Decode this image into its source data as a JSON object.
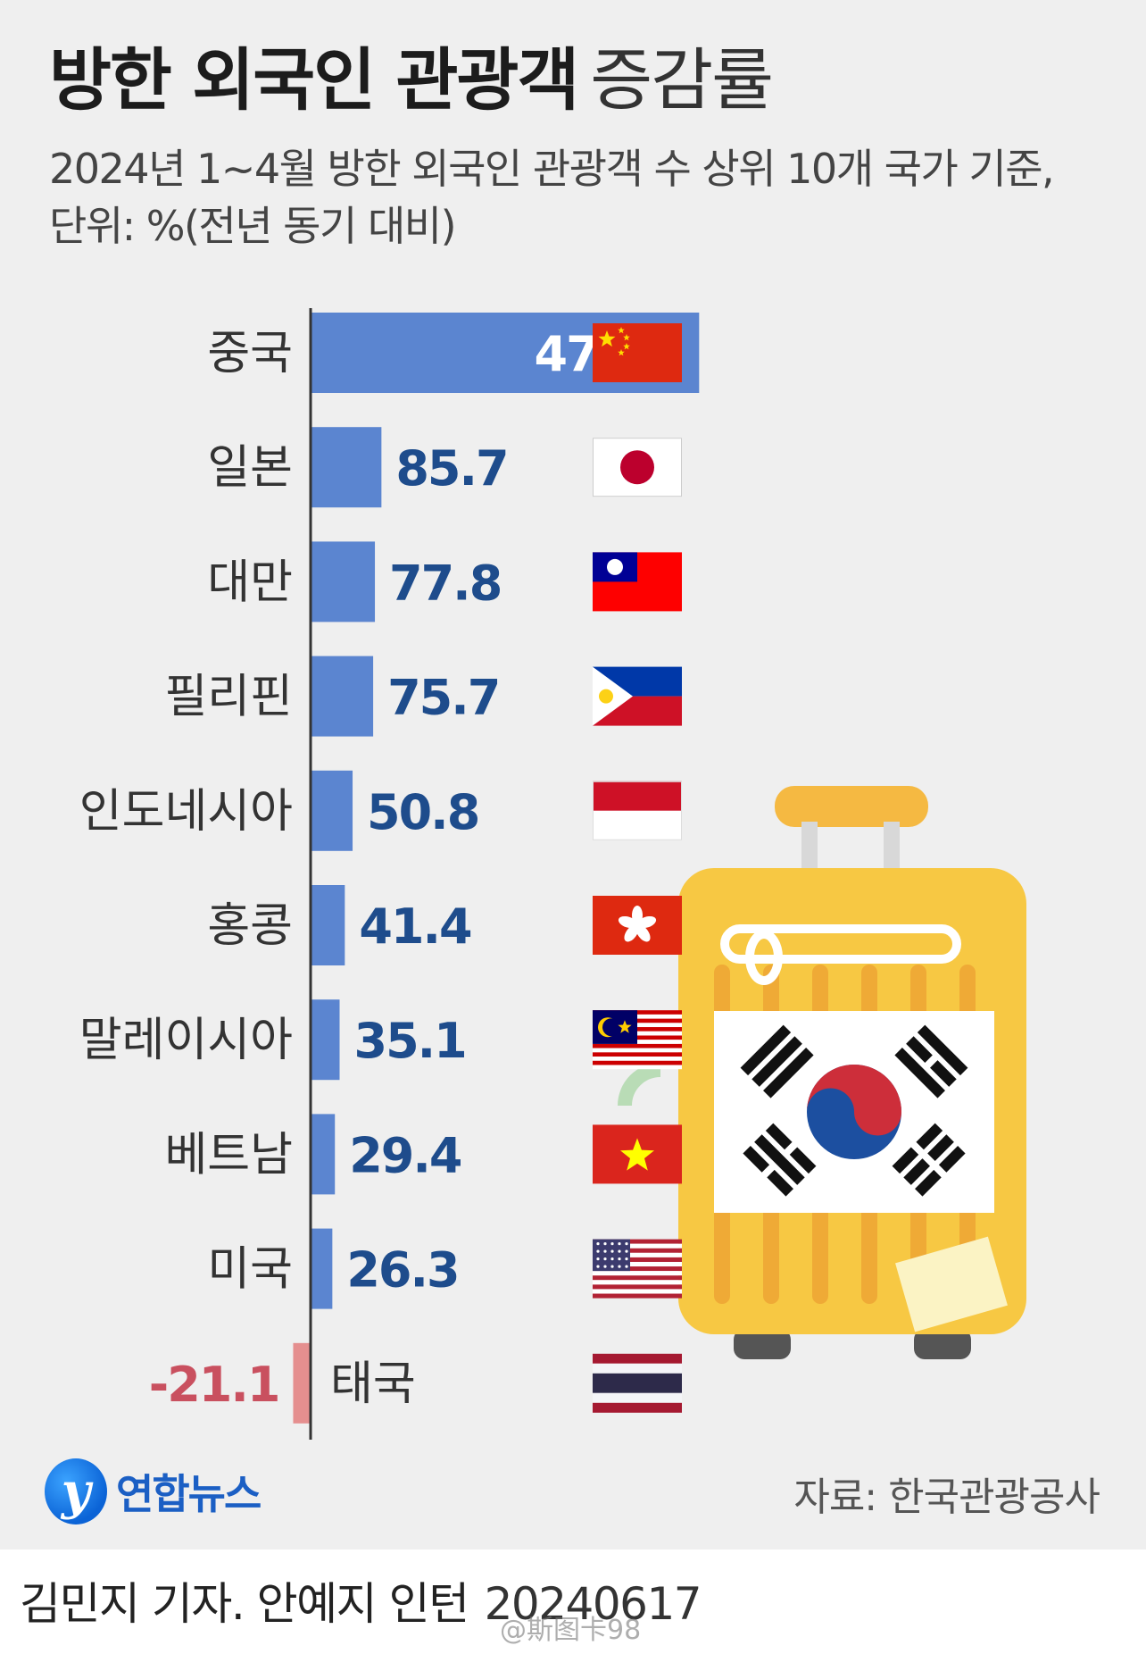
{
  "title": {
    "main": "방한 외국인 관광객",
    "sub": "증감률"
  },
  "subtitle_lines": [
    "2024년 1~4월 방한 외국인 관광객 수 상위 10개 국가 기준,",
    "단위: %(전년 동기 대비)"
  ],
  "chart_data": {
    "type": "bar",
    "orientation": "horizontal",
    "categories": [
      "중국",
      "일본",
      "대만",
      "필리핀",
      "인도네시아",
      "홍콩",
      "말레이시아",
      "베트남",
      "미국",
      "태국"
    ],
    "values": [
      470.1,
      85.7,
      77.8,
      75.7,
      50.8,
      41.4,
      35.1,
      29.4,
      26.3,
      -21.1
    ],
    "value_labels": [
      "470.1",
      "85.7",
      "77.8",
      "75.7",
      "50.8",
      "41.4",
      "35.1",
      "29.4",
      "26.3",
      "-21.1"
    ],
    "colors": {
      "positive_bar": "#5b85d0",
      "negative_bar": "#e58f8f",
      "positive_label": "#1e4c8c",
      "negative_label": "#c9505f",
      "label_inside_bar": "#ffffff"
    },
    "flag_icons": [
      "china-flag-icon",
      "japan-flag-icon",
      "taiwan-flag-icon",
      "philippines-flag-icon",
      "indonesia-flag-icon",
      "hong-kong-flag-icon",
      "malaysia-flag-icon",
      "vietnam-flag-icon",
      "usa-flag-icon",
      "thailand-flag-icon"
    ],
    "decoration": "suitcase-with-korean-flag-icon"
  },
  "footer": {
    "logo_text": "연합뉴스",
    "source": "자료: 한국관광공사"
  },
  "credit": {
    "authors": "김민지 기자. 안예지 인턴",
    "date": "20240617"
  },
  "watermark": "@斯图卡98"
}
